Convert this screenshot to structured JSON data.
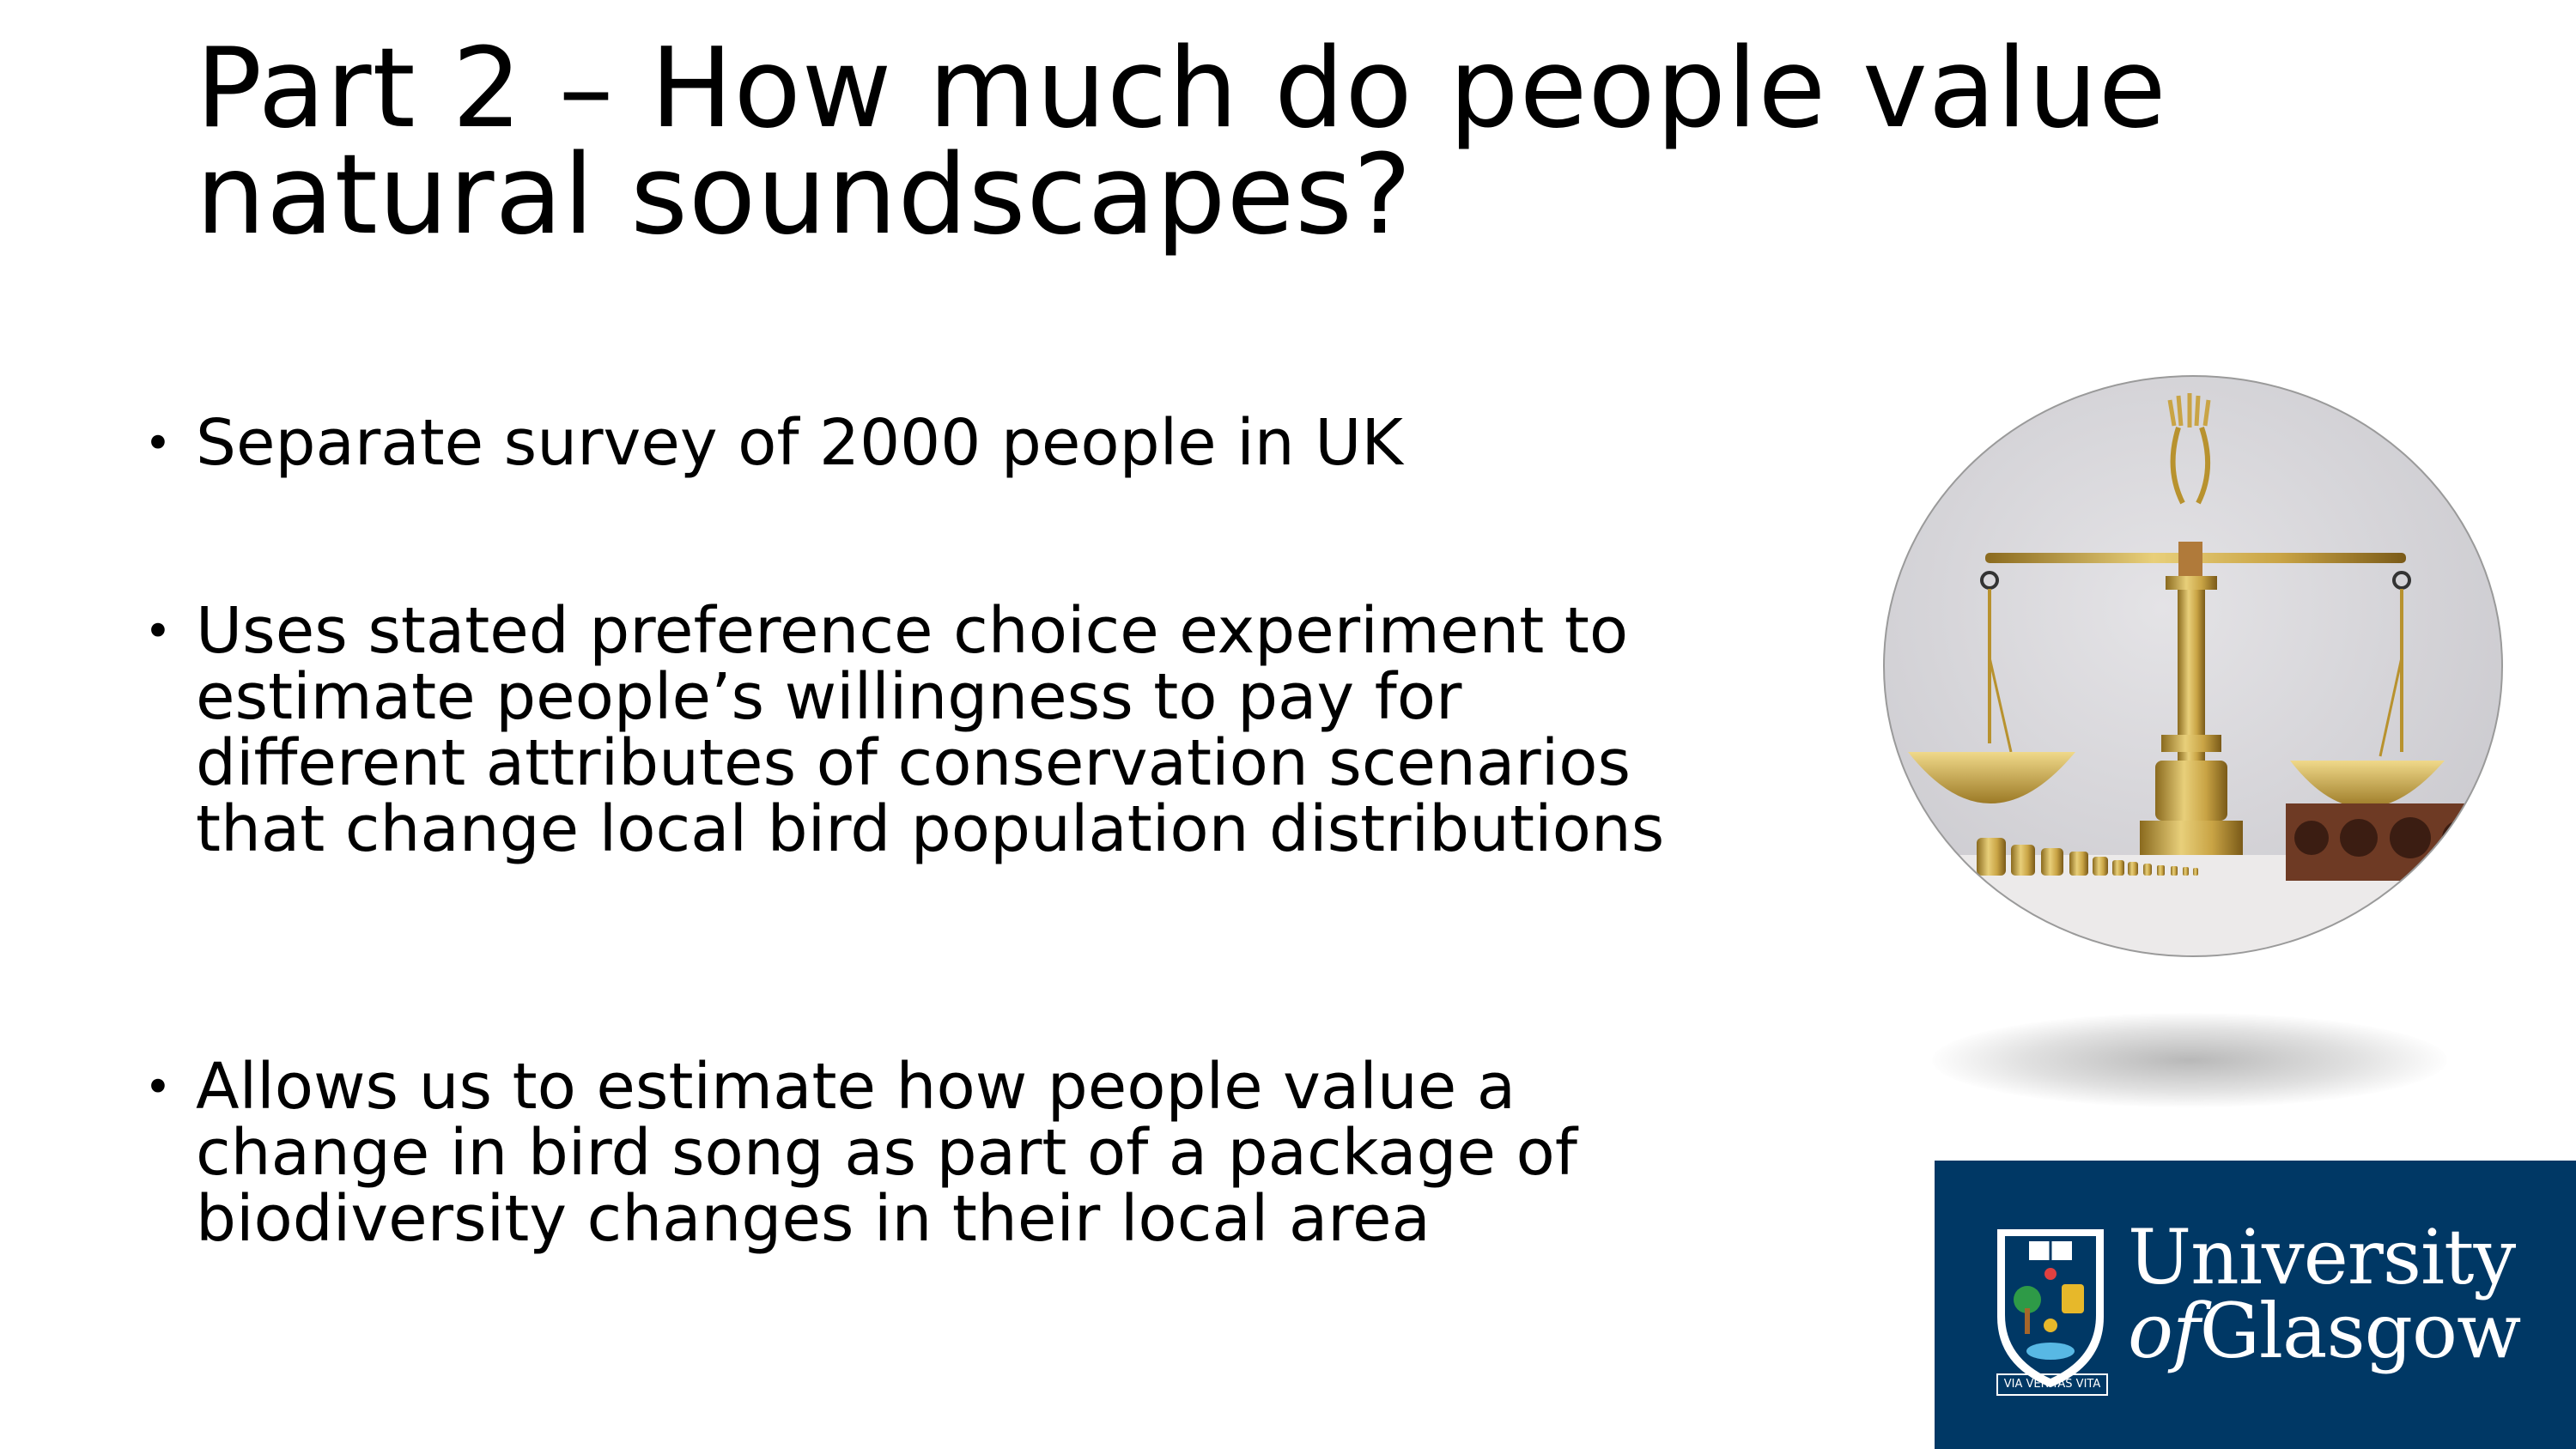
{
  "slide": {
    "title": "Part 2 – How much do people value natural soundscapes?",
    "bullets": [
      "Separate survey of 2000 people in UK",
      "Uses stated preference choice experiment to estimate people’s willingness to pay for different attributes of conservation scenarios that change local bird population distributions",
      "Allows us to estimate how people value a change in bird song as part of a package of biodiversity changes in their local area"
    ],
    "bullet_glyph": "•"
  },
  "logo": {
    "line1": "University",
    "line2_italic": "of",
    "line2_rest": "Glasgow",
    "motto": "VIA VERITAS VITA",
    "background_color": "#003865"
  },
  "image": {
    "subject": "brass-balance-scale-icon"
  }
}
